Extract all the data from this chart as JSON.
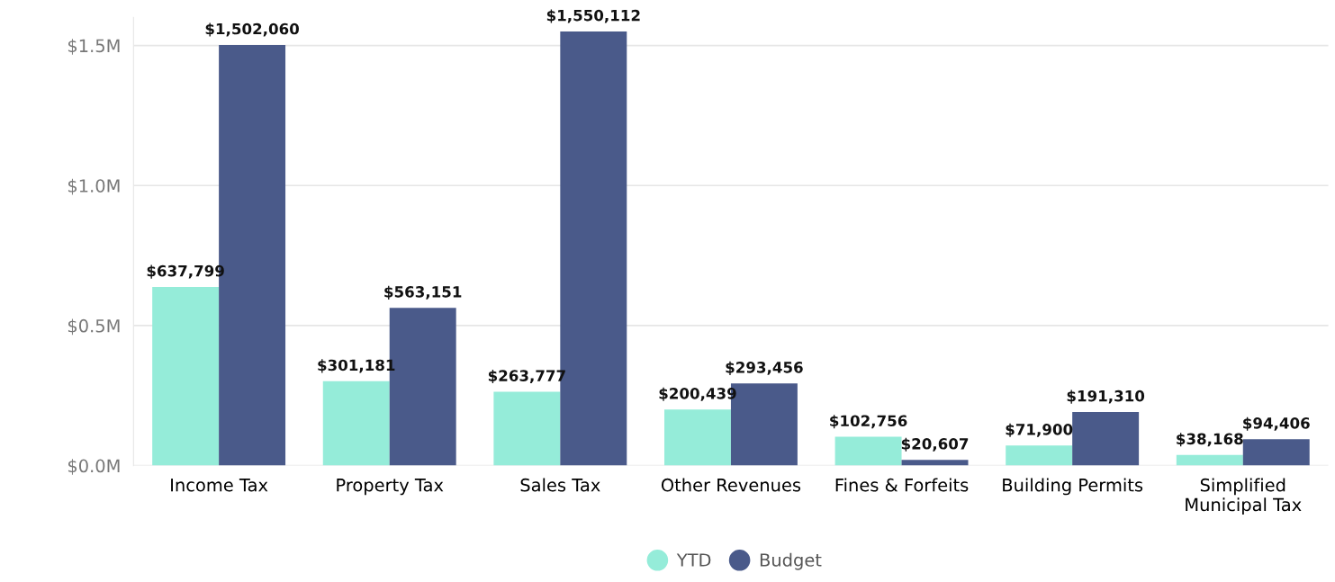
{
  "chart_data": {
    "type": "bar",
    "categories": [
      "Income Tax",
      "Property Tax",
      "Sales Tax",
      "Other Revenues",
      "Fines & Forfeits",
      "Building Permits",
      "Simplified\nMunicipal Tax"
    ],
    "series": [
      {
        "name": "YTD",
        "color": "#95ecd9",
        "values": [
          637799,
          301181,
          263777,
          200439,
          102756,
          71900,
          38168
        ],
        "value_labels": [
          "$637,799",
          "$301,181",
          "$263,777",
          "$200,439",
          "$102,756",
          "$71,900",
          "$38,168"
        ]
      },
      {
        "name": "Budget",
        "color": "#4a5a8a",
        "values": [
          1502060,
          563151,
          1550112,
          293456,
          20607,
          191310,
          94406
        ],
        "value_labels": [
          "$1,502,060",
          "$563,151",
          "$1,550,112",
          "$293,456",
          "$20,607",
          "$191,310",
          "$94,406"
        ]
      }
    ],
    "ylim": [
      0,
      1600000
    ],
    "yticks": [
      {
        "value": 0,
        "label": "$0.0M"
      },
      {
        "value": 500000,
        "label": "$0.5M"
      },
      {
        "value": 1000000,
        "label": "$1.0M"
      },
      {
        "value": 1500000,
        "label": "$1.5M"
      }
    ],
    "grid": "y",
    "legend": "bottom",
    "marker": "circle"
  }
}
